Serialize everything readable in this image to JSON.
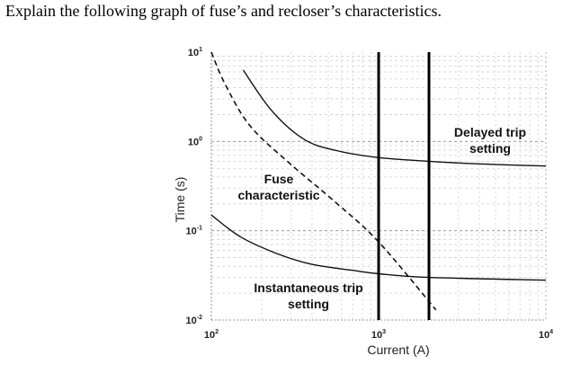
{
  "question": "Explain the following graph of fuse’s and recloser’s characteristics.",
  "chart_data": {
    "type": "line",
    "xscale": "log",
    "yscale": "log",
    "xlim": [
      100,
      10000
    ],
    "ylim": [
      0.01,
      10
    ],
    "xlabel": "Current (A)",
    "ylabel": "Time (s)",
    "x_ticks": [
      {
        "base": "10",
        "exp": "2",
        "value": 100
      },
      {
        "base": "10",
        "exp": "3",
        "value": 1000
      },
      {
        "base": "10",
        "exp": "4",
        "value": 10000
      }
    ],
    "y_ticks": [
      {
        "base": "10",
        "exp": "1",
        "value": 10
      },
      {
        "base": "10",
        "exp": "0",
        "value": 1
      },
      {
        "base": "10",
        "exp": "-1",
        "value": 0.1
      },
      {
        "base": "10",
        "exp": "-2",
        "value": 0.01
      }
    ],
    "grid": true,
    "curves": [
      {
        "id": "delayed",
        "label_lines": [
          "Delayed trip",
          "setting"
        ],
        "style": "solid",
        "points": [
          [
            155,
            6.3
          ],
          [
            230,
            2.2
          ],
          [
            360,
            1.05
          ],
          [
            560,
            0.79
          ],
          [
            1000,
            0.66
          ],
          [
            2000,
            0.6
          ],
          [
            4000,
            0.56
          ],
          [
            10000,
            0.53
          ]
        ]
      },
      {
        "id": "instantaneous",
        "label_lines": [
          "Instantaneous trip",
          "setting"
        ],
        "style": "solid",
        "points": [
          [
            100,
            0.15
          ],
          [
            150,
            0.085
          ],
          [
            250,
            0.055
          ],
          [
            400,
            0.042
          ],
          [
            700,
            0.036
          ],
          [
            1000,
            0.033
          ],
          [
            2000,
            0.03
          ],
          [
            10000,
            0.028
          ]
        ]
      },
      {
        "id": "fuse",
        "label_lines": [
          "Fuse",
          "characteristic"
        ],
        "style": "dashed",
        "points": [
          [
            100,
            10
          ],
          [
            120,
            4.5
          ],
          [
            170,
            1.5
          ],
          [
            300,
            0.55
          ],
          [
            550,
            0.21
          ],
          [
            1000,
            0.075
          ],
          [
            2200,
            0.013
          ]
        ]
      }
    ],
    "vertical_lines": [
      {
        "id": "v1",
        "x": 1000
      },
      {
        "id": "v2",
        "x": 2000
      }
    ]
  }
}
